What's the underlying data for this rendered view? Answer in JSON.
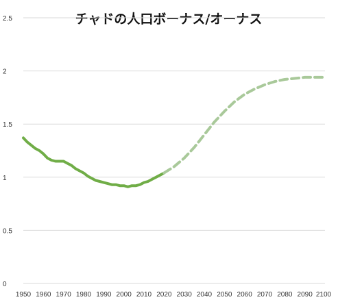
{
  "chart_data": {
    "type": "line",
    "title": "チャドの人口ボーナス/オーナス",
    "xlabel": "",
    "ylabel": "",
    "xlim": [
      1950,
      2100
    ],
    "ylim": [
      0,
      2.5
    ],
    "grid": true,
    "x_ticks": [
      "1950",
      "1960",
      "1970",
      "1980",
      "1990",
      "2000",
      "2010",
      "2020",
      "2030",
      "2040",
      "2050",
      "2060",
      "2070",
      "2080",
      "2090",
      "2100"
    ],
    "y_ticks": [
      "0",
      "0.5",
      "1",
      "1.5",
      "2",
      "2.5"
    ],
    "colors": {
      "actual": "#70ad47",
      "projection": "#a9c99a",
      "grid": "#d9d9d9"
    },
    "series": [
      {
        "style": "solid",
        "x": [
          1950,
          1952,
          1954,
          1956,
          1958,
          1960,
          1962,
          1964,
          1966,
          1968,
          1970,
          1972,
          1974,
          1976,
          1978,
          1980,
          1982,
          1984,
          1986,
          1988,
          1990,
          1992,
          1994,
          1996,
          1998,
          2000,
          2002,
          2004,
          2006,
          2008,
          2010,
          2012,
          2014,
          2016,
          2018,
          2020
        ],
        "y": [
          1.37,
          1.33,
          1.3,
          1.27,
          1.25,
          1.22,
          1.18,
          1.16,
          1.15,
          1.15,
          1.15,
          1.13,
          1.11,
          1.08,
          1.06,
          1.04,
          1.01,
          0.99,
          0.97,
          0.96,
          0.95,
          0.94,
          0.93,
          0.93,
          0.92,
          0.92,
          0.91,
          0.92,
          0.92,
          0.93,
          0.95,
          0.96,
          0.98,
          1.0,
          1.02,
          1.04
        ]
      },
      {
        "style": "dashed",
        "x": [
          2020,
          2025,
          2030,
          2035,
          2040,
          2045,
          2050,
          2055,
          2060,
          2065,
          2070,
          2075,
          2080,
          2085,
          2090,
          2095,
          2100
        ],
        "y": [
          1.04,
          1.1,
          1.18,
          1.28,
          1.4,
          1.52,
          1.62,
          1.71,
          1.78,
          1.83,
          1.87,
          1.9,
          1.92,
          1.93,
          1.94,
          1.94,
          1.94
        ]
      }
    ]
  }
}
